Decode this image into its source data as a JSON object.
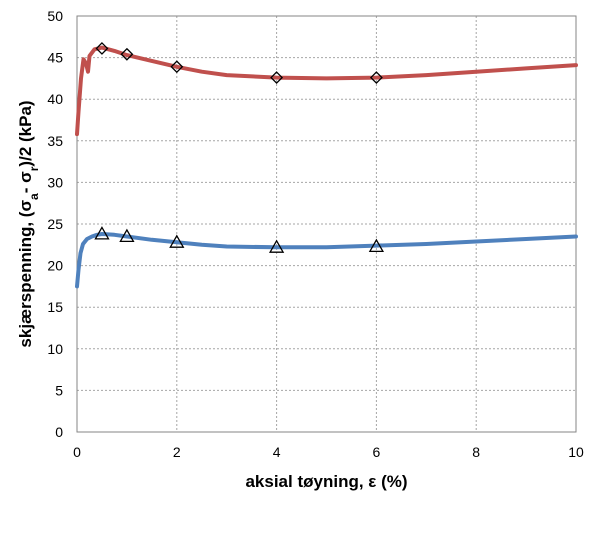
{
  "chart_data": {
    "type": "line",
    "xlabel": "aksial tøyning, ε (%)",
    "ylabel": {
      "prefix": "skjærspenning, (σ",
      "sub_a": "a",
      "middle": "- σ",
      "sub_r": "r",
      "suffix": ")/2 (kPa)"
    },
    "xlim": [
      0,
      10
    ],
    "ylim": [
      0,
      50
    ],
    "xticks": [
      0,
      2,
      4,
      6,
      8,
      10
    ],
    "yticks": [
      0,
      5,
      10,
      15,
      20,
      25,
      30,
      35,
      40,
      45,
      50
    ],
    "grid": true,
    "series": [
      {
        "color": "#c0504d",
        "marker": "diamond",
        "x": [
          0,
          0.03,
          0.08,
          0.13,
          0.18,
          0.22,
          0.25,
          0.35,
          0.5,
          0.75,
          1.0,
          1.5,
          2.0,
          2.5,
          3.0,
          4.0,
          5.0,
          6.0,
          7.0,
          8.0,
          9.0,
          10.0
        ],
        "y": [
          35.8,
          38.5,
          42.5,
          44.8,
          44.3,
          43.3,
          45.2,
          46.0,
          46.2,
          45.8,
          45.3,
          44.6,
          43.9,
          43.3,
          42.9,
          42.6,
          42.5,
          42.6,
          42.9,
          43.3,
          43.7,
          44.1
        ],
        "marker_x": [
          0.5,
          1.0,
          2.0,
          4.0,
          6.0
        ],
        "marker_y": [
          46.1,
          45.4,
          43.9,
          42.6,
          42.6
        ]
      },
      {
        "color": "#4f81bd",
        "marker": "triangle",
        "x": [
          0,
          0.03,
          0.07,
          0.12,
          0.2,
          0.3,
          0.4,
          0.5,
          0.75,
          1.0,
          1.5,
          2.0,
          2.5,
          3.0,
          4.0,
          5.0,
          6.0,
          7.0,
          8.0,
          9.0,
          10.0
        ],
        "y": [
          17.5,
          19.5,
          21.5,
          22.6,
          23.2,
          23.5,
          23.7,
          23.8,
          23.7,
          23.5,
          23.1,
          22.8,
          22.5,
          22.3,
          22.2,
          22.2,
          22.4,
          22.6,
          22.9,
          23.2,
          23.5
        ],
        "marker_x": [
          0.5,
          1.0,
          2.0,
          4.0,
          6.0
        ],
        "marker_y": [
          23.8,
          23.5,
          22.8,
          22.2,
          22.3
        ]
      }
    ]
  }
}
